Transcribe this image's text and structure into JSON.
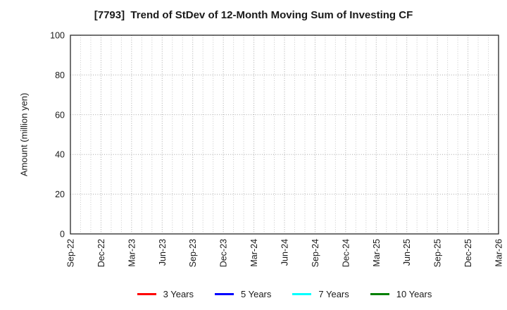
{
  "chart_data": {
    "type": "line",
    "title": "[7793]  Trend of StDev of 12-Month Moving Sum of Investing CF",
    "xlabel": "",
    "ylabel": "Amount (million yen)",
    "x_tick_labels": [
      "Sep-22",
      "Dec-22",
      "Mar-23",
      "Jun-23",
      "Sep-23",
      "Dec-23",
      "Mar-24",
      "Jun-24",
      "Sep-24",
      "Dec-24",
      "Mar-25",
      "Jun-25",
      "Sep-25",
      "Dec-25",
      "Mar-26"
    ],
    "x_major_every": 3,
    "x_minor_total": 42,
    "y_ticks": [
      0,
      20,
      40,
      60,
      80,
      100
    ],
    "ylim": [
      0,
      100
    ],
    "grid": true,
    "legend_position": "bottom-center",
    "series": [
      {
        "name": "3 Years",
        "color": "#ff0000",
        "values": []
      },
      {
        "name": "5 Years",
        "color": "#0000ff",
        "values": []
      },
      {
        "name": "7 Years",
        "color": "#00ffff",
        "values": []
      },
      {
        "name": "10 Years",
        "color": "#008000",
        "values": []
      }
    ]
  },
  "colors": {
    "plot_border": "#262626",
    "grid_major": "#a9a9a9",
    "grid_minor": "#c8c8c8",
    "text": "#1a1a1a"
  }
}
